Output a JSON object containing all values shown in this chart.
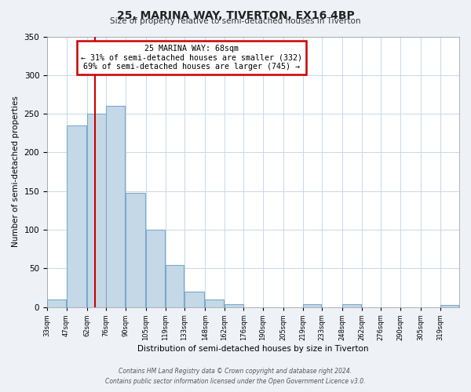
{
  "title": "25, MARINA WAY, TIVERTON, EX16 4BP",
  "subtitle": "Size of property relative to semi-detached houses in Tiverton",
  "xlabel": "Distribution of semi-detached houses by size in Tiverton",
  "ylabel": "Number of semi-detached properties",
  "footer_line1": "Contains HM Land Registry data © Crown copyright and database right 2024.",
  "footer_line2": "Contains public sector information licensed under the Open Government Licence v3.0.",
  "bin_labels": [
    "33sqm",
    "47sqm",
    "62sqm",
    "76sqm",
    "90sqm",
    "105sqm",
    "119sqm",
    "133sqm",
    "148sqm",
    "162sqm",
    "176sqm",
    "190sqm",
    "205sqm",
    "219sqm",
    "233sqm",
    "248sqm",
    "262sqm",
    "276sqm",
    "290sqm",
    "305sqm",
    "319sqm"
  ],
  "bar_values": [
    10,
    235,
    250,
    260,
    148,
    100,
    54,
    20,
    10,
    4,
    0,
    0,
    0,
    4,
    0,
    4,
    0,
    0,
    0,
    0,
    3
  ],
  "bar_color": "#c5d8e8",
  "bar_edge_color": "#7aaac8",
  "property_line_x": 68,
  "ylim": [
    0,
    350
  ],
  "yticks": [
    0,
    50,
    100,
    150,
    200,
    250,
    300,
    350
  ],
  "annotation_title": "25 MARINA WAY: 68sqm",
  "annotation_line1": "← 31% of semi-detached houses are smaller (332)",
  "annotation_line2": "69% of semi-detached houses are larger (745) →",
  "annotation_box_color": "#ffffff",
  "annotation_box_edge_color": "#cc0000",
  "line_color": "#cc0000",
  "background_color": "#eef2f7",
  "plot_background_color": "#ffffff"
}
